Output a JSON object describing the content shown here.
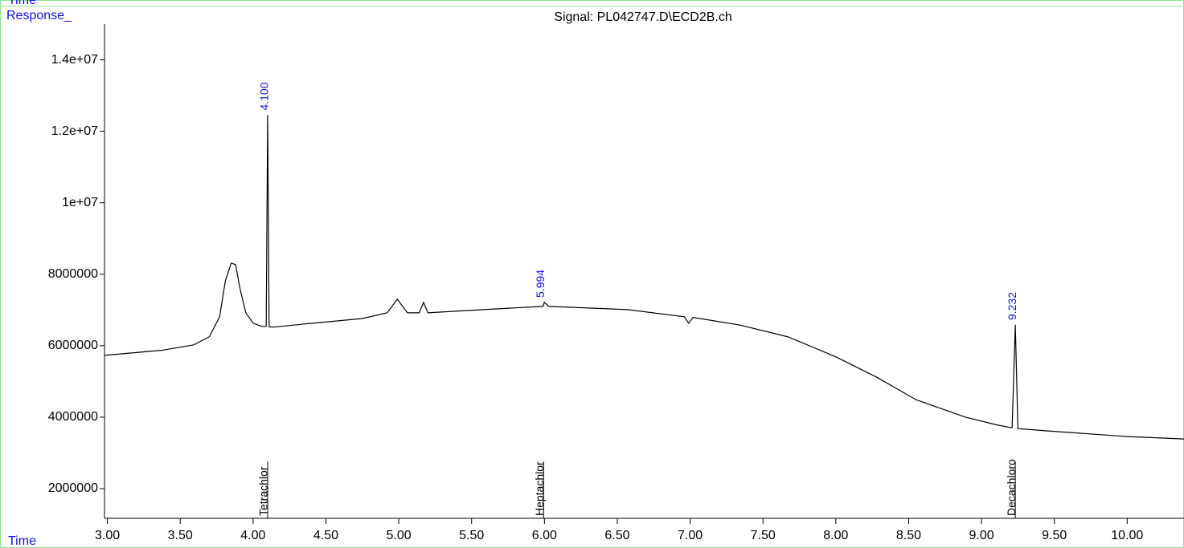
{
  "chart_data": {
    "type": "line",
    "top_label": "Time",
    "y_label": "Response_",
    "x_label": "Time",
    "title": "Signal: PL042747.D\\ECD2B.ch",
    "color": "#000000",
    "xlim": [
      2.98,
      10.39
    ],
    "ylim": [
      1170000,
      15000000
    ],
    "xticks": [
      {
        "value": 3,
        "label": "3.00"
      },
      {
        "value": 3.5,
        "label": "3.50"
      },
      {
        "value": 4,
        "label": "4.00"
      },
      {
        "value": 4.5,
        "label": "4.50"
      },
      {
        "value": 5,
        "label": "5.00"
      },
      {
        "value": 5.5,
        "label": "5.50"
      },
      {
        "value": 6,
        "label": "6.00"
      },
      {
        "value": 6.5,
        "label": "6.50"
      },
      {
        "value": 7,
        "label": "7.00"
      },
      {
        "value": 7.5,
        "label": "7.50"
      },
      {
        "value": 8,
        "label": "8.00"
      },
      {
        "value": 8.5,
        "label": "8.50"
      },
      {
        "value": 9,
        "label": "9.00"
      },
      {
        "value": 9.5,
        "label": "9.50"
      },
      {
        "value": 10,
        "label": "10.00"
      }
    ],
    "yticks": [
      2000000,
      4000000,
      6000000,
      8000000,
      {
        "value": 10000000,
        "label": "1e+07"
      },
      {
        "value": 12000000,
        "label": "1.2e+07"
      },
      {
        "value": 14000000,
        "label": "1.4e+07"
      }
    ],
    "x": [
      2.98,
      3.37,
      3.59,
      3.7,
      3.77,
      3.81,
      3.85,
      3.88,
      3.91,
      3.95,
      4.0,
      4.06,
      4.09,
      4.1,
      4.11,
      4.14,
      4.36,
      4.75,
      4.92,
      4.99,
      5.06,
      5.14,
      5.17,
      5.2,
      5.58,
      5.99,
      6.0,
      6.03,
      6.57,
      6.96,
      6.99,
      7.02,
      7.34,
      7.67,
      8.0,
      8.28,
      8.55,
      8.89,
      9.11,
      9.21,
      9.232,
      9.25,
      9.44,
      9.99,
      10.39
    ],
    "values": [
      5730000,
      5870000,
      6020000,
      6250000,
      6810000,
      7820000,
      8310000,
      8270000,
      7600000,
      6920000,
      6630000,
      6540000,
      6540000,
      12450000,
      6530000,
      6520000,
      6610000,
      6760000,
      6920000,
      7300000,
      6920000,
      6920000,
      7210000,
      6920000,
      7010000,
      7100000,
      7210000,
      7100000,
      7010000,
      6810000,
      6630000,
      6790000,
      6580000,
      6250000,
      5690000,
      5120000,
      4490000,
      4000000,
      3780000,
      3700000,
      6580000,
      3680000,
      3620000,
      3460000,
      3390000
    ],
    "peaks": {
      "x": [
        4.1,
        5.994,
        9.232
      ],
      "value_labels": [
        "4.100",
        "5.994",
        "9.232"
      ],
      "values": [
        12450000,
        7210000,
        6580000
      ],
      "names": [
        "Tetrachlor",
        "Heptachlor",
        "Decachloro"
      ]
    }
  }
}
